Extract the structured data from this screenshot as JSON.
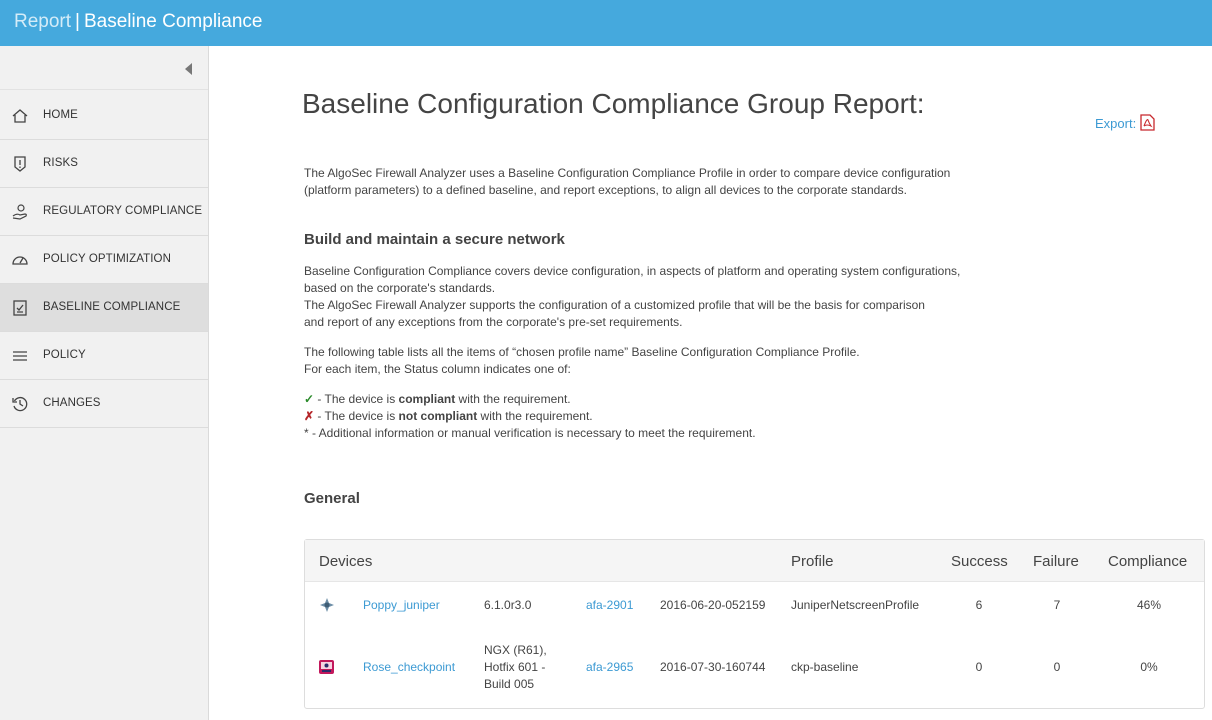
{
  "header": {
    "section": "Report",
    "separator": "|",
    "title": "Baseline Compliance"
  },
  "sidebar": {
    "items": [
      {
        "label": "HOME",
        "icon": "home-icon"
      },
      {
        "label": "RISKS",
        "icon": "shield-exclamation-icon"
      },
      {
        "label": "REGULATORY COMPLIANCE",
        "icon": "hand-certificate-icon"
      },
      {
        "label": "POLICY OPTIMIZATION",
        "icon": "speedometer-icon"
      },
      {
        "label": "BASELINE COMPLIANCE",
        "icon": "checklist-icon",
        "active": true
      },
      {
        "label": "POLICY",
        "icon": "list-icon"
      },
      {
        "label": "CHANGES",
        "icon": "history-icon"
      }
    ]
  },
  "main": {
    "heading": "Baseline Configuration Compliance Group Report:",
    "export_label": "Export:",
    "intro_line1": "The AlgoSec Firewall Analyzer uses a Baseline Configuration Compliance Profile in order to compare device configuration",
    "intro_line2": "(platform parameters) to a defined baseline, and report exceptions, to align all devices to the corporate standards.",
    "section1_title": "Build and maintain a secure network",
    "section1_line1": "Baseline Configuration Compliance covers device configuration, in aspects of platform and operating system configurations,",
    "section1_line2": "based on the corporate's standards.",
    "section1_line3": "The AlgoSec Firewall Analyzer supports the configuration of a customized profile that will be the basis for comparison",
    "section1_line4": "and report of any exceptions from the corporate's pre-set requirements.",
    "table_note_line1": "The following table lists all the items of “chosen profile name” Baseline Configuration Compliance Profile.",
    "table_note_line2": "For each item, the Status column indicates one of:",
    "legend": {
      "compliant_symbol": "✓",
      "compliant_pre": " - The device is ",
      "compliant_bold": "compliant",
      "compliant_post": " with the requirement.",
      "not_compliant_symbol": "✗",
      "not_compliant_pre": " - The device is ",
      "not_compliant_bold": "not compliant",
      "not_compliant_post": " with the requirement.",
      "additional": "* - Additional information or manual verification is necessary to meet the requirement."
    },
    "general_title": "General"
  },
  "table": {
    "headers": {
      "devices": "Devices",
      "profile": "Profile",
      "success": "Success",
      "failure": "Failure",
      "compliance": "Compliance"
    },
    "rows": [
      {
        "icon": "juniper-device-icon",
        "device": "Poppy_juniper",
        "version_lines": [
          "6.1.0r3.0"
        ],
        "report": "afa-2901",
        "date": "2016-06-20-052159",
        "profile": "JuniperNetscreenProfile",
        "success": "6",
        "failure": "7",
        "compliance": "46%"
      },
      {
        "icon": "checkpoint-device-icon",
        "device": "Rose_checkpoint",
        "version_lines": [
          "NGX (R61),",
          "Hotfix 601 -",
          "Build 005"
        ],
        "report": "afa-2965",
        "date": "2016-07-30-160744",
        "profile": "ckp-baseline",
        "success": "0",
        "failure": "0",
        "compliance": "0%"
      }
    ]
  },
  "colors": {
    "topbar": "#45a9dd",
    "link": "#3c9ad3",
    "check": "#2a8a2a",
    "cross": "#b5262a"
  }
}
